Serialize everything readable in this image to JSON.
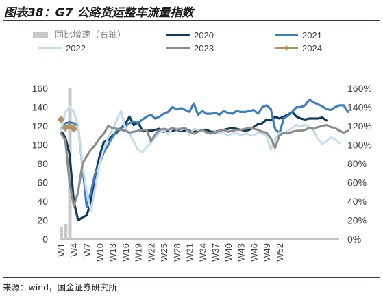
{
  "title": "图表38：G7 公路货运整车流量指数",
  "source": "来源：wind，国金证券研究所",
  "chart_data": {
    "type": "line",
    "x_labels": [
      "W1",
      "W4",
      "W7",
      "W10",
      "W13",
      "W16",
      "W19",
      "W22",
      "W25",
      "W28",
      "W31",
      "W34",
      "W37",
      "W40",
      "W43",
      "W46",
      "W49",
      "W52"
    ],
    "ylim_left": [
      0,
      160
    ],
    "yticks_left": [
      "0",
      "20",
      "40",
      "60",
      "80",
      "100",
      "120",
      "140",
      "160"
    ],
    "ylim_right": [
      0,
      160
    ],
    "yticks_right": [
      "0%",
      "20%",
      "40%",
      "60%",
      "80%",
      "100%",
      "120%",
      "140%",
      "160%"
    ],
    "legend": {
      "placement": "top",
      "order": [
        "同比增速（右轴）",
        "2020",
        "2021",
        "2022",
        "2023",
        "2024"
      ]
    },
    "series": [
      {
        "name": "同比增速（右轴）",
        "type": "bar",
        "axis": "right",
        "color": "#c8c8c8",
        "values": [
          13,
          16,
          160
        ]
      },
      {
        "name": "2020",
        "type": "line",
        "axis": "left",
        "color": "#0c3b5e",
        "values": [
          115,
          108,
          90,
          40,
          20,
          23,
          25,
          40,
          68,
          88,
          103,
          105,
          110,
          113,
          118,
          122,
          130,
          121,
          124,
          115,
          115,
          115,
          116,
          117,
          114,
          115,
          115,
          116,
          115,
          115,
          115,
          114,
          115,
          116,
          116,
          114,
          114,
          115,
          116,
          117,
          118,
          117,
          116,
          115,
          116,
          119,
          122,
          123,
          127,
          126,
          130,
          128,
          130,
          132,
          135,
          130,
          128,
          127,
          128,
          128,
          128,
          129,
          126
        ]
      },
      {
        "name": "2021",
        "type": "line",
        "axis": "left",
        "color": "#3d7ebf",
        "values": [
          118,
          123,
          124,
          123,
          120,
          78,
          34,
          50,
          70,
          80,
          92,
          100,
          108,
          115,
          118,
          120,
          123,
          125,
          123,
          127,
          130,
          132,
          128,
          130,
          133,
          135,
          140,
          138,
          139,
          137,
          135,
          144,
          132,
          136,
          133,
          133,
          134,
          132,
          136,
          134,
          133,
          136,
          135,
          135,
          136,
          137,
          133,
          140,
          142,
          138,
          117,
          112,
          128,
          131,
          135,
          140,
          140,
          142,
          148,
          145,
          143,
          141,
          138,
          137,
          140,
          142,
          142,
          135
        ]
      },
      {
        "name": "2022",
        "type": "line",
        "axis": "left",
        "color": "#c7dcef",
        "values": [
          115,
          135,
          140,
          135,
          120,
          80,
          50,
          30,
          55,
          80,
          96,
          108,
          116,
          126,
          136,
          118,
          112,
          103,
          95,
          92,
          98,
          102,
          108,
          113,
          116,
          111,
          118,
          118,
          116,
          118,
          111,
          117,
          116,
          116,
          113,
          112,
          114,
          112,
          113,
          110,
          112,
          113,
          110,
          112,
          111,
          110,
          113,
          112,
          110,
          95,
          106,
          113,
          112,
          115,
          118,
          121,
          120,
          121,
          119,
          115,
          106,
          101,
          104,
          108,
          106,
          102
        ]
      },
      {
        "name": "2023",
        "type": "line",
        "axis": "left",
        "color": "#8c8c8c",
        "values": [
          112,
          105,
          60,
          35,
          50,
          80,
          88,
          95,
          100,
          107,
          112,
          120,
          118,
          117,
          116,
          115,
          113,
          114,
          115,
          116,
          116,
          104,
          111,
          116,
          117,
          116,
          118,
          116,
          117,
          118,
          114,
          112,
          114,
          116,
          113,
          112,
          113,
          115,
          116,
          114,
          115,
          116,
          116,
          117,
          118,
          117,
          116,
          114,
          113,
          107,
          97,
          110,
          113,
          112,
          114,
          115,
          115,
          116,
          118,
          117,
          119,
          120,
          121,
          119,
          118,
          115,
          113,
          115
        ]
      },
      {
        "name": "2024",
        "type": "line",
        "axis": "left",
        "color": "#b68f62",
        "values": [
          127,
          118,
          120,
          117
        ]
      }
    ]
  }
}
